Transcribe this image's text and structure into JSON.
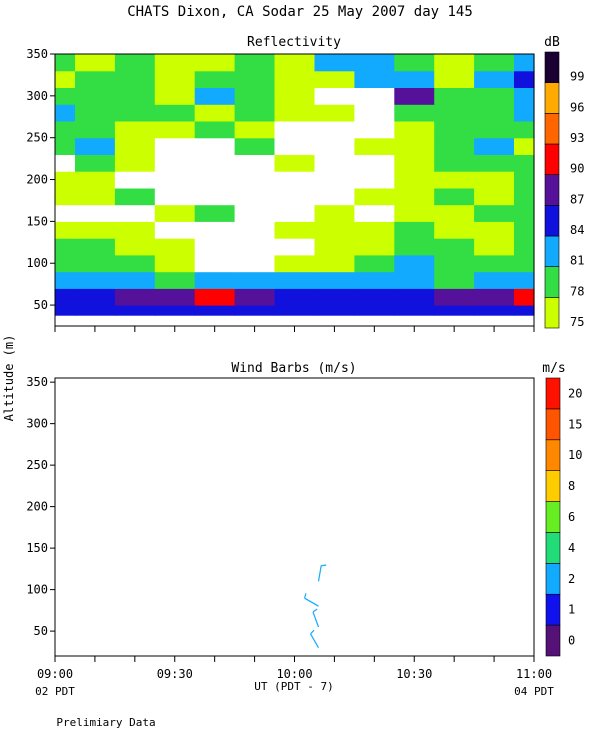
{
  "main_title": "CHATS Dixon, CA  Sodar  25 May 2007  day 145",
  "footer_note": "Prelimiary Data",
  "chart_data": [
    {
      "type": "heatmap",
      "title": "Reflectivity",
      "ylabel": "Altitude (m)",
      "xlabel": "UT  (PDT - 7)",
      "xlim": [
        "09:00",
        "11:00"
      ],
      "ylim": [
        25,
        350
      ],
      "y_ticks": [
        50,
        100,
        150,
        200,
        250,
        300,
        350
      ],
      "grid": false,
      "colorbar": {
        "unit": "dB",
        "levels": [
          75,
          78,
          81,
          84,
          87,
          90,
          93,
          96,
          99
        ],
        "labels": [
          "75",
          "78",
          "81",
          "84",
          "87",
          "90",
          "93",
          "96",
          "99"
        ],
        "colors": [
          "#ccff00",
          "#33dd44",
          "#11aaff",
          "#1111dd",
          "#551199",
          "#ff0000",
          "#ff6600",
          "#ffaa00",
          "#1a0033"
        ]
      },
      "times": [
        "09:00",
        "09:10",
        "09:20",
        "09:30",
        "09:40",
        "09:50",
        "10:00",
        "10:10",
        "10:20",
        "10:30",
        "10:40",
        "10:50",
        "11:00"
      ],
      "heights": [
        40,
        60,
        80,
        100,
        120,
        140,
        160,
        180,
        200,
        220,
        240,
        260,
        280,
        300,
        320,
        340
      ],
      "values_db": [
        [
          84,
          84,
          84,
          84,
          84,
          84,
          84,
          84,
          84,
          84,
          84,
          84,
          84
        ],
        [
          84,
          84,
          87,
          87,
          90,
          87,
          84,
          84,
          84,
          84,
          87,
          87,
          90
        ],
        [
          81,
          81,
          81,
          78,
          81,
          81,
          81,
          81,
          81,
          81,
          78,
          81,
          81
        ],
        [
          78,
          78,
          78,
          75,
          72,
          72,
          75,
          75,
          78,
          81,
          78,
          78,
          78
        ],
        [
          78,
          78,
          75,
          75,
          72,
          72,
          72,
          75,
          75,
          78,
          78,
          75,
          78
        ],
        [
          75,
          75,
          75,
          72,
          72,
          72,
          75,
          75,
          75,
          78,
          75,
          75,
          78
        ],
        [
          72,
          72,
          72,
          75,
          78,
          72,
          72,
          75,
          72,
          75,
          75,
          78,
          78
        ],
        [
          75,
          75,
          78,
          72,
          72,
          72,
          72,
          72,
          75,
          75,
          78,
          75,
          78
        ],
        [
          75,
          75,
          72,
          72,
          72,
          72,
          72,
          72,
          72,
          75,
          75,
          75,
          78
        ],
        [
          72,
          78,
          75,
          72,
          72,
          72,
          75,
          72,
          72,
          75,
          78,
          78,
          78
        ],
        [
          78,
          81,
          75,
          72,
          72,
          78,
          72,
          72,
          75,
          75,
          78,
          81,
          75
        ],
        [
          78,
          78,
          75,
          75,
          78,
          75,
          72,
          72,
          72,
          75,
          78,
          78,
          78
        ],
        [
          81,
          78,
          78,
          78,
          75,
          78,
          75,
          75,
          72,
          78,
          78,
          78,
          81
        ],
        [
          78,
          78,
          78,
          75,
          81,
          78,
          75,
          72,
          72,
          87,
          78,
          78,
          81
        ],
        [
          75,
          78,
          78,
          75,
          78,
          78,
          75,
          75,
          81,
          81,
          75,
          81,
          84
        ],
        [
          78,
          75,
          78,
          75,
          75,
          78,
          75,
          81,
          81,
          78,
          75,
          78,
          81
        ]
      ]
    },
    {
      "type": "scatter",
      "title": "Wind Barbs (m/s)",
      "ylabel": "Altitude (m)",
      "xlabel": "UT  (PDT - 7)",
      "x_ticks": [
        "09:00",
        "09:30",
        "10:00",
        "10:30",
        "11:00"
      ],
      "x_start_label": "02 PDT",
      "x_end_label": "04 PDT",
      "ylim": [
        20,
        355
      ],
      "y_ticks": [
        50,
        100,
        150,
        200,
        250,
        300,
        350
      ],
      "grid": false,
      "colorbar": {
        "unit": "m/s",
        "labels": [
          "0",
          "1",
          "2",
          "4",
          "6",
          "8",
          "10",
          "15",
          "20"
        ],
        "colors": [
          "#551177",
          "#1111ee",
          "#11aaff",
          "#22dd77",
          "#66ee22",
          "#ffcc00",
          "#ff8800",
          "#ff5500",
          "#ff1100"
        ]
      },
      "barbs": [
        {
          "time": "10:06",
          "altitude": 30,
          "speed_ms": 2.5,
          "direction_deg": 330
        },
        {
          "time": "10:06",
          "altitude": 55,
          "speed_ms": 2.5,
          "direction_deg": 340
        },
        {
          "time": "10:06",
          "altitude": 80,
          "speed_ms": 2.5,
          "direction_deg": 300
        },
        {
          "time": "10:06",
          "altitude": 110,
          "speed_ms": 2.5,
          "direction_deg": 10
        }
      ]
    }
  ]
}
